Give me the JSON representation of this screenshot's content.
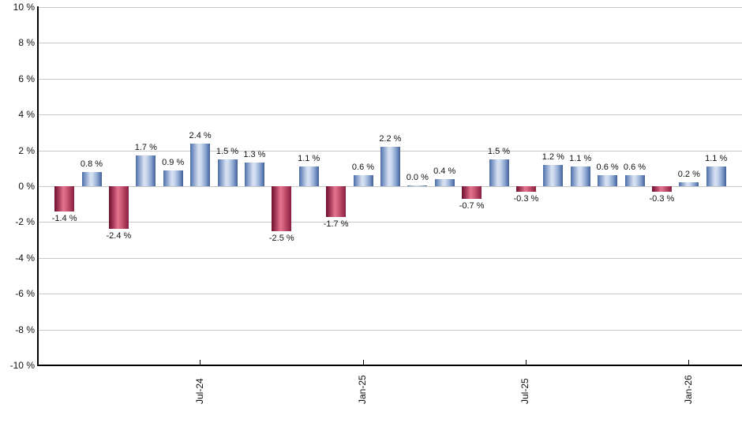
{
  "chart_data": {
    "type": "bar",
    "title": "",
    "xlabel": "",
    "ylabel": "",
    "ylim": [
      -10,
      10
    ],
    "grid": true,
    "legend": "none",
    "y_tick_labels": [
      "10 %",
      "8 %",
      "6 %",
      "4 %",
      "2 %",
      "0 %",
      "-2 %",
      "-4 %",
      "-6 %",
      "-8 %",
      "-10 %"
    ],
    "y_tick_values": [
      10,
      8,
      6,
      4,
      2,
      0,
      -2,
      -4,
      -6,
      -8,
      -10
    ],
    "x_ticks": [
      {
        "label": "Jul-24",
        "index": 5
      },
      {
        "label": "Jan-25",
        "index": 11
      },
      {
        "label": "Jul-25",
        "index": 17
      },
      {
        "label": "Jan-26",
        "index": 23
      }
    ],
    "values": [
      -1.4,
      0.8,
      -2.4,
      1.7,
      0.9,
      2.4,
      1.5,
      1.3,
      -2.5,
      1.1,
      -1.7,
      0.6,
      2.2,
      0.0,
      0.4,
      -0.7,
      1.5,
      -0.3,
      1.2,
      1.1,
      0.6,
      0.6,
      -0.3,
      0.2,
      1.1
    ],
    "bar_labels": [
      "-1.4 %",
      "0.8 %",
      "-2.4 %",
      "1.7 %",
      "0.9 %",
      "2.4 %",
      "1.5 %",
      "1.3 %",
      "-2.5 %",
      "1.1 %",
      "-1.7 %",
      "0.6 %",
      "2.2 %",
      "0.0 %",
      "0.4 %",
      "-0.7 %",
      "1.5 %",
      "-0.3 %",
      "1.2 %",
      "1.1 %",
      "0.6 %",
      "0.6 %",
      "-0.3 %",
      "0.2 %",
      "1.1 %"
    ],
    "colors": {
      "positive_bar": "#5c80b6",
      "negative_bar": "#b23a5c",
      "grid_line": "#c8c8c8",
      "axis_line": "#000000",
      "label_text": "#111111"
    }
  }
}
